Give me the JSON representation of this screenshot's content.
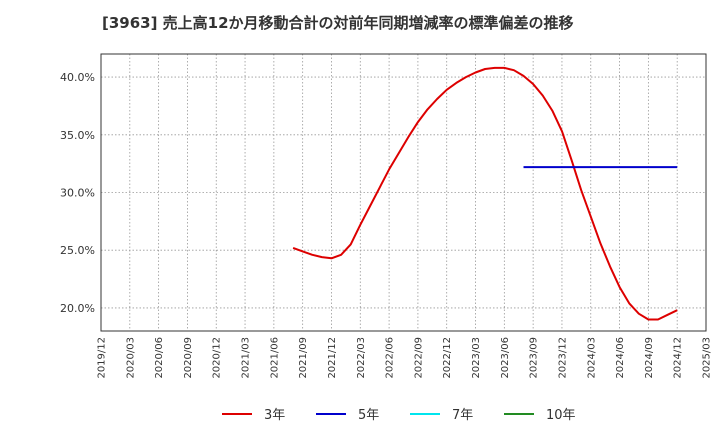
{
  "chart_data": {
    "type": "line",
    "title": "[3963]  売上高12か月移動合計の対前年同期増減率の標準偏差の推移",
    "xlabel": "",
    "ylabel": "",
    "ylim": [
      0.18,
      0.42
    ],
    "grid": true,
    "legend_position": "bottom",
    "x_tick_labels": [
      "2019/12",
      "2020/03",
      "2020/06",
      "2020/09",
      "2020/12",
      "2021/03",
      "2021/06",
      "2021/09",
      "2021/12",
      "2022/03",
      "2022/06",
      "2022/09",
      "2022/12",
      "2023/03",
      "2023/06",
      "2023/09",
      "2023/12",
      "2024/03",
      "2024/06",
      "2024/09",
      "2024/12",
      "2025/03"
    ],
    "y_ticks": [
      0.2,
      0.25,
      0.3,
      0.35,
      0.4
    ],
    "y_tick_labels": [
      "20.0%",
      "25.0%",
      "30.0%",
      "35.0%",
      "40.0%"
    ],
    "series": [
      {
        "name": "3年",
        "color": "#dd0000",
        "x": [
          "2021/08",
          "2021/09",
          "2021/10",
          "2021/11",
          "2021/12",
          "2022/01",
          "2022/02",
          "2022/03",
          "2022/04",
          "2022/05",
          "2022/06",
          "2022/07",
          "2022/08",
          "2022/09",
          "2022/10",
          "2022/11",
          "2022/12",
          "2023/01",
          "2023/02",
          "2023/03",
          "2023/04",
          "2023/05",
          "2023/06",
          "2023/07",
          "2023/08",
          "2023/09",
          "2023/10",
          "2023/11",
          "2023/12",
          "2024/01",
          "2024/02",
          "2024/03",
          "2024/04",
          "2024/05",
          "2024/06",
          "2024/07",
          "2024/08",
          "2024/09",
          "2024/10",
          "2024/11",
          "2024/12"
        ],
        "values": [
          0.252,
          0.249,
          0.246,
          0.244,
          0.243,
          0.246,
          0.255,
          0.272,
          0.288,
          0.304,
          0.32,
          0.334,
          0.348,
          0.361,
          0.372,
          0.381,
          0.389,
          0.395,
          0.4,
          0.404,
          0.407,
          0.408,
          0.408,
          0.406,
          0.401,
          0.394,
          0.384,
          0.371,
          0.353,
          0.328,
          0.302,
          0.279,
          0.256,
          0.236,
          0.218,
          0.204,
          0.195,
          0.19,
          0.19,
          0.194,
          0.198
        ]
      },
      {
        "name": "5年",
        "color": "#0000cc",
        "x": [
          "2023/08",
          "2023/09",
          "2023/10",
          "2023/11",
          "2023/12",
          "2024/01",
          "2024/02",
          "2024/03",
          "2024/04",
          "2024/05",
          "2024/06",
          "2024/07",
          "2024/08",
          "2024/09",
          "2024/10",
          "2024/11",
          "2024/12"
        ],
        "values": [
          0.322,
          0.322,
          0.322,
          0.322,
          0.322,
          0.322,
          0.322,
          0.322,
          0.322,
          0.322,
          0.322,
          0.322,
          0.322,
          0.322,
          0.322,
          0.322,
          0.322
        ]
      },
      {
        "name": "7年",
        "color": "#00e5ee",
        "x": [],
        "values": []
      },
      {
        "name": "10年",
        "color": "#228b22",
        "x": [],
        "values": []
      }
    ]
  }
}
